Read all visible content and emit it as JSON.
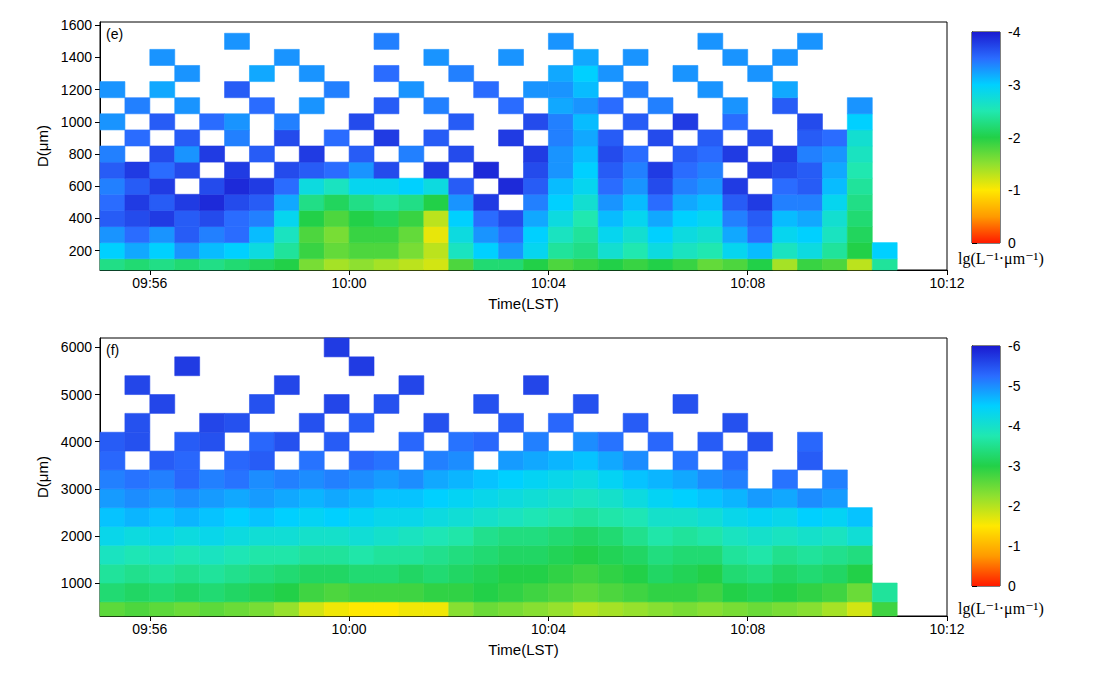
{
  "chart_data": [
    {
      "type": "heatmap",
      "panel": "(e)",
      "x_label": "Time(LST)",
      "y_label": "D(μm)",
      "grid": false,
      "xlim": [
        595,
        612
      ],
      "xticks": [
        {
          "value": 596,
          "label": "09:56"
        },
        {
          "value": 600,
          "label": "10:00"
        },
        {
          "value": 604,
          "label": "10:04"
        },
        {
          "value": 608,
          "label": "10:08"
        },
        {
          "value": 612,
          "label": "10:12"
        }
      ],
      "ylim": [
        80,
        1620
      ],
      "yticks": [
        200,
        400,
        600,
        800,
        1000,
        1200,
        1400,
        1600
      ],
      "x": [
        595.25,
        595.75,
        596.25,
        596.75,
        597.25,
        597.75,
        598.25,
        598.75,
        599.25,
        599.75,
        600.25,
        600.75,
        601.25,
        601.75,
        602.25,
        602.75,
        603.25,
        603.75,
        604.25,
        604.75,
        605.25,
        605.75,
        606.25,
        606.75,
        607.25,
        607.75,
        608.25,
        608.75,
        609.25,
        609.75,
        610.25,
        610.75
      ],
      "y": [
        100,
        200,
        300,
        400,
        500,
        600,
        700,
        800,
        900,
        1000,
        1100,
        1200,
        1300,
        1400,
        1500
      ],
      "cells": [
        [
          -2.3,
          -2.2,
          -2.3,
          -2.2,
          -2.3,
          -2.2,
          -2.1,
          -2.0,
          -1.6,
          -1.4,
          -1.5,
          -1.4,
          -1.3,
          -1.2,
          -1.8,
          -2.2,
          -2.2,
          -2.0,
          -1.8,
          -1.9,
          -2.0,
          -1.9,
          -2.0,
          -1.9,
          -1.7,
          -1.8,
          -2.0,
          -1.4,
          -1.9,
          -1.8,
          -1.3,
          -2.4
        ],
        [
          -3.0,
          -3.2,
          -3.0,
          -3.3,
          -3.1,
          -3.0,
          -2.8,
          -2.4,
          -1.9,
          -1.7,
          -1.8,
          -1.8,
          -1.6,
          -1.3,
          -2.6,
          -3.0,
          -3.3,
          -2.9,
          -2.4,
          -2.3,
          -2.7,
          -2.5,
          -2.8,
          -2.6,
          -2.5,
          -2.9,
          -3.1,
          -2.6,
          -2.8,
          -2.4,
          -2.0,
          -3.0
        ],
        [
          -3.3,
          -3.5,
          -3.3,
          -3.6,
          -3.4,
          -3.5,
          -3.1,
          -2.6,
          -1.8,
          -1.6,
          -1.9,
          -1.9,
          -1.7,
          -1.1,
          -2.8,
          -3.3,
          -3.5,
          -3.0,
          -2.6,
          -2.4,
          -2.9,
          -2.7,
          -3.0,
          -2.8,
          -2.7,
          -3.2,
          -3.5,
          -2.9,
          -3.0,
          -2.6,
          -2.1,
          null
        ],
        [
          -3.6,
          -3.7,
          -3.8,
          -3.6,
          -3.7,
          -3.5,
          -3.4,
          -2.9,
          -2.0,
          -1.8,
          -2.0,
          -2.1,
          -1.9,
          -1.3,
          -3.0,
          -3.5,
          -3.7,
          -3.2,
          -2.8,
          -2.5,
          -3.1,
          -2.9,
          -3.2,
          -3.0,
          -2.9,
          -3.4,
          -3.6,
          -3.1,
          -3.2,
          -2.7,
          -2.2,
          null
        ],
        [
          -3.5,
          -3.8,
          -3.6,
          -3.8,
          -3.9,
          -3.7,
          -3.6,
          -3.2,
          -2.3,
          -2.1,
          -2.3,
          -2.4,
          -2.3,
          -2.0,
          -3.3,
          -3.8,
          null,
          -3.4,
          -3.0,
          -2.7,
          -3.3,
          -3.1,
          -3.5,
          -3.2,
          -3.1,
          -3.6,
          -3.8,
          -3.4,
          -3.4,
          -2.9,
          -2.3,
          null
        ],
        [
          -3.4,
          -3.6,
          -3.8,
          null,
          -3.7,
          -3.9,
          -3.8,
          -3.5,
          -2.8,
          -2.6,
          -2.9,
          -2.9,
          -3.0,
          -2.8,
          -3.6,
          null,
          -3.9,
          -3.6,
          -3.1,
          -2.9,
          -3.5,
          -3.3,
          -3.7,
          -3.4,
          -3.3,
          -3.8,
          null,
          -3.5,
          -3.6,
          -3.1,
          -2.4,
          null
        ],
        [
          -3.6,
          -3.8,
          -3.5,
          -3.7,
          null,
          -3.8,
          null,
          -3.7,
          -3.6,
          -3.5,
          -3.3,
          -3.7,
          null,
          -3.8,
          null,
          -3.9,
          null,
          -3.7,
          -3.3,
          -3.0,
          -3.6,
          -3.4,
          -3.8,
          -3.5,
          -3.4,
          null,
          -3.8,
          -3.7,
          -3.6,
          -3.2,
          -2.5,
          null
        ],
        [
          -3.4,
          null,
          -3.7,
          -3.3,
          -3.8,
          null,
          -3.6,
          null,
          -3.8,
          null,
          -3.6,
          null,
          -3.4,
          null,
          -3.7,
          null,
          null,
          -3.8,
          -3.3,
          -3.1,
          -3.7,
          -3.5,
          null,
          -3.6,
          -3.5,
          -3.8,
          null,
          -3.8,
          -3.4,
          -3.3,
          -2.6,
          null
        ],
        [
          null,
          -3.5,
          null,
          -3.6,
          null,
          -3.4,
          null,
          -3.7,
          null,
          -3.5,
          null,
          -3.8,
          null,
          -3.6,
          null,
          null,
          -3.8,
          null,
          -3.4,
          -3.2,
          -3.6,
          null,
          -3.7,
          null,
          -3.6,
          null,
          -3.7,
          null,
          -3.6,
          -3.5,
          -2.7,
          null
        ],
        [
          -3.3,
          null,
          -3.6,
          null,
          -3.5,
          -3.3,
          null,
          -3.4,
          null,
          null,
          -3.7,
          null,
          null,
          null,
          -3.6,
          null,
          null,
          -3.7,
          -3.4,
          -3.1,
          null,
          -3.6,
          null,
          -3.8,
          null,
          -3.5,
          null,
          null,
          -3.7,
          null,
          -3.0,
          null
        ],
        [
          null,
          -3.4,
          null,
          -3.3,
          null,
          null,
          -3.5,
          null,
          -3.3,
          null,
          null,
          -3.6,
          null,
          -3.4,
          null,
          null,
          -3.5,
          null,
          -3.2,
          -3.3,
          -3.5,
          null,
          -3.4,
          null,
          null,
          -3.3,
          null,
          -3.6,
          null,
          null,
          -3.3,
          null
        ],
        [
          -3.3,
          null,
          -3.2,
          null,
          null,
          -3.6,
          null,
          null,
          null,
          -3.4,
          null,
          null,
          -3.3,
          null,
          null,
          -3.5,
          null,
          -3.3,
          -3.3,
          -3.1,
          null,
          -3.4,
          null,
          null,
          -3.3,
          null,
          null,
          -3.2,
          null,
          null,
          null,
          null
        ],
        [
          null,
          null,
          null,
          -3.3,
          null,
          null,
          -3.2,
          null,
          -3.3,
          null,
          null,
          -3.5,
          null,
          null,
          -3.4,
          null,
          null,
          null,
          -3.2,
          -3.0,
          -3.3,
          null,
          null,
          -3.3,
          null,
          null,
          -3.3,
          null,
          null,
          null,
          null,
          null
        ],
        [
          null,
          null,
          -3.3,
          null,
          null,
          null,
          null,
          -3.3,
          null,
          null,
          null,
          null,
          null,
          -3.3,
          null,
          null,
          -3.3,
          null,
          null,
          -3.2,
          null,
          -3.3,
          null,
          null,
          null,
          -3.3,
          null,
          -3.3,
          null,
          null,
          null,
          null
        ],
        [
          null,
          null,
          null,
          null,
          null,
          -3.3,
          null,
          null,
          null,
          null,
          null,
          -3.4,
          null,
          null,
          null,
          null,
          null,
          null,
          -3.3,
          null,
          null,
          null,
          null,
          null,
          -3.3,
          null,
          null,
          null,
          -3.3,
          null,
          null,
          null
        ]
      ],
      "colorbar": {
        "range": [
          -4,
          0
        ],
        "ticks": [
          -4,
          -3,
          -2,
          -1,
          0
        ],
        "label": "lg(L⁻¹·μm⁻¹)"
      }
    },
    {
      "type": "heatmap",
      "panel": "(f)",
      "x_label": "Time(LST)",
      "y_label": "D(μm)",
      "grid": false,
      "xlim": [
        595,
        612
      ],
      "xticks": [
        {
          "value": 596,
          "label": "09:56"
        },
        {
          "value": 600,
          "label": "10:00"
        },
        {
          "value": 604,
          "label": "10:04"
        },
        {
          "value": 608,
          "label": "10:08"
        },
        {
          "value": 612,
          "label": "10:12"
        }
      ],
      "ylim": [
        300,
        6200
      ],
      "yticks": [
        1000,
        2000,
        3000,
        4000,
        5000,
        6000
      ],
      "x": [
        595.25,
        595.75,
        596.25,
        596.75,
        597.25,
        597.75,
        598.25,
        598.75,
        599.25,
        599.75,
        600.25,
        600.75,
        601.25,
        601.75,
        602.25,
        602.75,
        603.25,
        603.75,
        604.25,
        604.75,
        605.25,
        605.75,
        606.25,
        606.75,
        607.25,
        607.75,
        608.25,
        608.75,
        609.25,
        609.75,
        610.25,
        610.75
      ],
      "y": [
        400,
        800,
        1200,
        1600,
        2000,
        2400,
        2800,
        3200,
        3600,
        4000,
        4400,
        4800,
        5200,
        5600,
        6000
      ],
      "cells": [
        [
          -2.6,
          -2.7,
          -2.6,
          -2.5,
          -2.6,
          -2.5,
          -2.4,
          -2.2,
          -1.8,
          -1.6,
          -1.5,
          -1.5,
          -1.6,
          -1.6,
          -2.3,
          -2.5,
          -2.4,
          -2.3,
          -2.2,
          -2.0,
          -2.1,
          -2.2,
          -2.3,
          -2.4,
          -2.3,
          -2.4,
          -2.5,
          -2.4,
          -2.3,
          -2.1,
          -1.8,
          -2.8
        ],
        [
          -3.3,
          -3.2,
          -3.3,
          -3.2,
          -3.3,
          -3.2,
          -3.1,
          -3.0,
          -2.8,
          -2.7,
          -2.8,
          -2.8,
          -2.8,
          -2.9,
          -2.9,
          -3.0,
          -2.9,
          -2.8,
          -2.7,
          -2.6,
          -2.7,
          -2.8,
          -2.9,
          -2.9,
          -2.8,
          -3.0,
          -3.1,
          -3.0,
          -2.9,
          -2.8,
          -2.5,
          -3.6
        ],
        [
          -3.6,
          -3.5,
          -3.6,
          -3.5,
          -3.6,
          -3.5,
          -3.4,
          -3.3,
          -3.2,
          -3.2,
          -3.3,
          -3.3,
          -3.2,
          -3.3,
          -3.2,
          -3.1,
          -3.0,
          -3.0,
          -2.9,
          -2.8,
          -2.9,
          -3.0,
          -3.2,
          -3.1,
          -3.0,
          -3.3,
          -3.4,
          -3.2,
          -3.3,
          -3.2,
          -3.0,
          null
        ],
        [
          -3.9,
          -3.8,
          -3.9,
          -3.8,
          -3.9,
          -3.8,
          -3.7,
          -3.7,
          -3.6,
          -3.6,
          -3.7,
          -3.6,
          -3.6,
          -3.5,
          -3.4,
          -3.3,
          -3.2,
          -3.2,
          -3.1,
          -3.0,
          -3.1,
          -3.2,
          -3.4,
          -3.3,
          -3.3,
          -3.6,
          -3.7,
          -3.5,
          -3.6,
          -3.5,
          -3.4,
          null
        ],
        [
          -4.3,
          -4.2,
          -4.3,
          -4.2,
          -4.3,
          -4.2,
          -4.1,
          -4.1,
          -4.0,
          -4.0,
          -4.1,
          -4.0,
          -3.9,
          -3.8,
          -3.7,
          -3.5,
          -3.4,
          -3.4,
          -3.3,
          -3.2,
          -3.3,
          -3.5,
          -3.7,
          -3.6,
          -3.7,
          -3.9,
          -4.0,
          -3.9,
          -4.0,
          -3.9,
          -4.1,
          null
        ],
        [
          -4.6,
          -4.7,
          -4.6,
          -4.7,
          -4.6,
          -4.5,
          -4.6,
          -4.5,
          -4.4,
          -4.5,
          -4.4,
          -4.3,
          -4.3,
          -4.2,
          -4.1,
          -4.0,
          -3.9,
          -3.8,
          -3.7,
          -3.6,
          -3.7,
          -3.8,
          -4.0,
          -4.0,
          -4.1,
          -4.3,
          -4.4,
          -4.3,
          -4.5,
          -4.4,
          -4.6,
          null
        ],
        [
          -4.9,
          -5.0,
          -4.9,
          -5.0,
          -4.9,
          -4.8,
          -4.9,
          -4.8,
          -4.7,
          -4.8,
          -4.7,
          -4.6,
          -4.6,
          -4.5,
          -4.4,
          -4.3,
          -4.2,
          -4.1,
          -4.0,
          -3.9,
          -4.0,
          -4.2,
          -4.4,
          -4.5,
          -4.6,
          -4.7,
          -4.9,
          -4.8,
          -5.0,
          -4.9,
          null,
          null
        ],
        [
          -5.1,
          -5.2,
          -5.1,
          -5.3,
          -5.1,
          -5.2,
          -5.0,
          -5.1,
          -5.0,
          -5.1,
          -5.0,
          -4.9,
          -5.0,
          -4.8,
          -4.7,
          -4.6,
          -4.5,
          -4.4,
          -4.3,
          -4.2,
          -4.4,
          -4.6,
          -4.7,
          -4.8,
          -5.0,
          -5.1,
          null,
          -5.2,
          null,
          -5.1,
          null,
          null
        ],
        [
          -5.3,
          null,
          -5.4,
          -5.3,
          null,
          -5.3,
          -5.4,
          null,
          -5.2,
          null,
          -5.3,
          -5.2,
          null,
          -5.1,
          -5.0,
          null,
          -4.9,
          -4.8,
          -4.7,
          -4.6,
          -4.8,
          -5.0,
          null,
          -5.2,
          null,
          -5.3,
          null,
          null,
          -5.4,
          null,
          null,
          null
        ],
        [
          -5.4,
          -5.5,
          null,
          -5.4,
          -5.5,
          null,
          -5.3,
          -5.5,
          null,
          -5.4,
          null,
          null,
          -5.3,
          null,
          -5.2,
          -5.3,
          null,
          -5.1,
          null,
          -5.0,
          -5.2,
          null,
          -5.3,
          null,
          -5.4,
          null,
          -5.5,
          null,
          -5.3,
          null,
          null,
          null
        ],
        [
          null,
          -5.5,
          null,
          null,
          -5.6,
          -5.5,
          null,
          null,
          -5.5,
          null,
          -5.4,
          null,
          null,
          -5.5,
          null,
          null,
          -5.4,
          null,
          -5.3,
          null,
          null,
          -5.4,
          null,
          null,
          null,
          -5.5,
          null,
          null,
          null,
          null,
          null,
          null
        ],
        [
          null,
          null,
          -5.6,
          null,
          null,
          null,
          -5.5,
          null,
          null,
          -5.6,
          null,
          -5.5,
          null,
          null,
          null,
          -5.5,
          null,
          null,
          null,
          -5.5,
          null,
          null,
          null,
          -5.5,
          null,
          null,
          null,
          null,
          null,
          null,
          null,
          null
        ],
        [
          null,
          -5.6,
          null,
          null,
          null,
          null,
          null,
          -5.6,
          null,
          null,
          null,
          null,
          -5.6,
          null,
          null,
          null,
          null,
          -5.6,
          null,
          null,
          null,
          null,
          null,
          null,
          null,
          null,
          null,
          null,
          null,
          null,
          null,
          null
        ],
        [
          null,
          null,
          null,
          -5.7,
          null,
          null,
          null,
          null,
          null,
          null,
          -5.7,
          null,
          null,
          null,
          null,
          null,
          null,
          null,
          null,
          null,
          null,
          null,
          null,
          null,
          null,
          null,
          null,
          null,
          null,
          null,
          null,
          null
        ],
        [
          null,
          null,
          null,
          null,
          null,
          null,
          null,
          null,
          null,
          -5.7,
          null,
          null,
          null,
          null,
          null,
          null,
          null,
          null,
          null,
          null,
          null,
          null,
          null,
          null,
          null,
          null,
          null,
          null,
          null,
          null,
          null,
          null
        ]
      ],
      "colorbar": {
        "range": [
          -6,
          0
        ],
        "ticks": [
          -6,
          -5,
          -4,
          -3,
          -2,
          -1,
          0
        ],
        "label": "lg(L⁻¹·μm⁻¹)"
      }
    }
  ]
}
